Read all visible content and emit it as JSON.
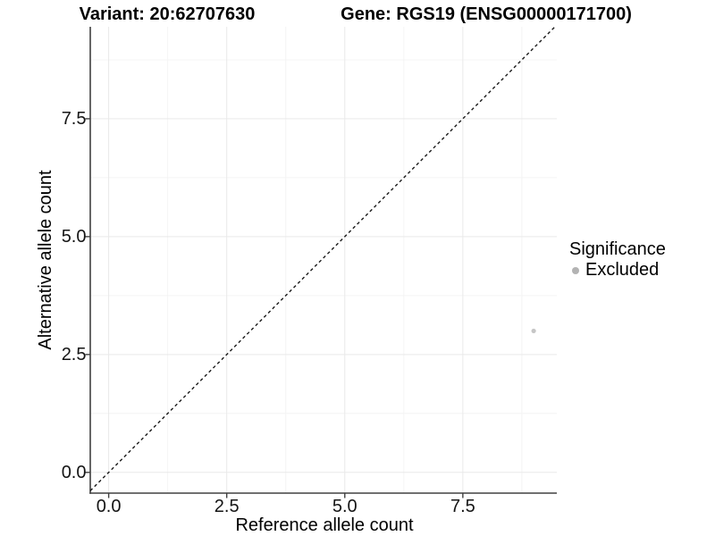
{
  "chart_data": {
    "type": "scatter",
    "titles": {
      "left": "Variant: 20:62707630",
      "right": "Gene: RGS19 (ENSG00000171700)"
    },
    "xlabel": "Reference allele count",
    "ylabel": "Alternative allele count",
    "x_tick_labels": [
      "0.0",
      "2.5",
      "5.0",
      "7.5"
    ],
    "y_tick_labels": [
      "0.0",
      "2.5",
      "5.0",
      "7.5"
    ],
    "x_tick_values": [
      0,
      2.5,
      5,
      7.5
    ],
    "y_tick_values": [
      0,
      2.5,
      5,
      7.5
    ],
    "xlim": [
      -0.39,
      9.49
    ],
    "ylim": [
      -0.44,
      9.45
    ],
    "grid": {
      "major": true,
      "minor": true
    },
    "identity_line": {
      "style": "dashed",
      "slope": 1,
      "intercept": 0
    },
    "series": [
      {
        "name": "Excluded",
        "points": [
          {
            "x": 9,
            "y": 3
          }
        ],
        "color": "#c6c6c6",
        "marker_radius": 2.6
      }
    ],
    "legend": {
      "title": "Significance",
      "position": "right",
      "entries": [
        {
          "label": "Excluded",
          "key_color": "#b3b3b3"
        }
      ]
    },
    "colors": {
      "background": "#ffffff",
      "grid_major": "#e9e9e9",
      "grid_minor": "#f4f4f4",
      "axis_line": "#404040",
      "tick_mark": "#404040",
      "identity_line": "#1a1a1a",
      "title_text": "#000000",
      "tick_text": "#141414"
    }
  }
}
